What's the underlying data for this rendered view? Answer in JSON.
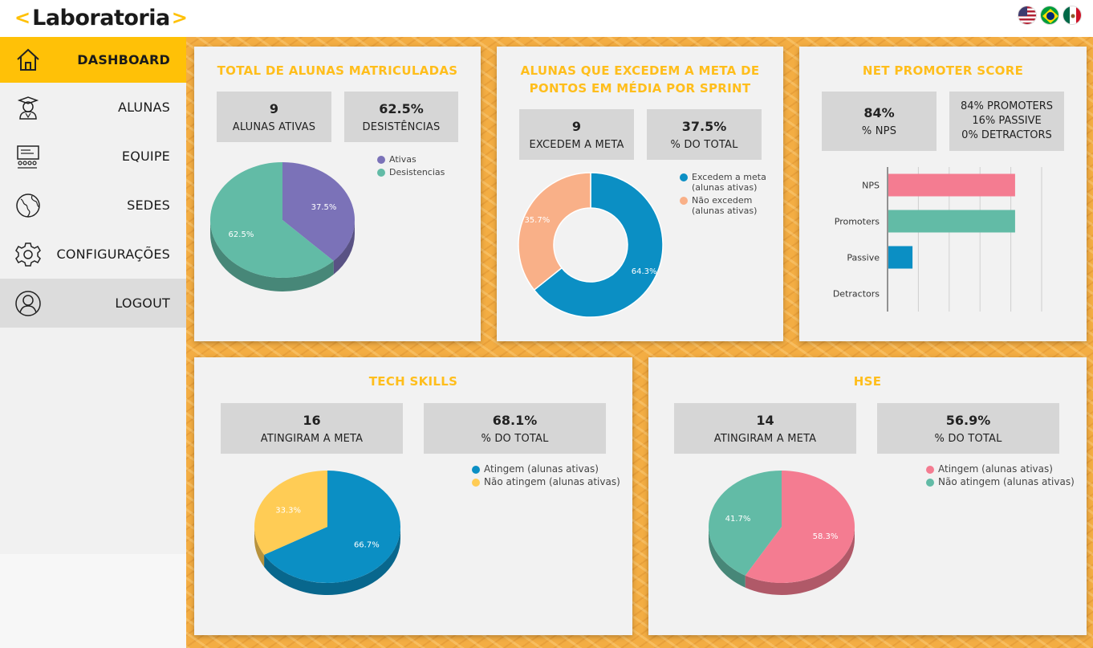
{
  "app": {
    "logo_left": "<",
    "logo_text": "Laboratoria",
    "logo_right": ">",
    "languages": [
      {
        "name": "us-flag-icon",
        "colors": [
          "#b22234",
          "#ffffff",
          "#3c3b6e"
        ]
      },
      {
        "name": "brazil-flag-icon",
        "colors": [
          "#009c3b",
          "#ffdf00",
          "#002776"
        ]
      },
      {
        "name": "mexico-flag-icon",
        "colors": [
          "#006847",
          "#ffffff",
          "#ce1126"
        ]
      }
    ]
  },
  "sidebar": {
    "items": [
      {
        "label": "DASHBOARD",
        "icon": "home-icon",
        "active": true
      },
      {
        "label": "ALUNAS",
        "icon": "student-icon"
      },
      {
        "label": "EQUIPE",
        "icon": "team-icon"
      },
      {
        "label": "SEDES",
        "icon": "globe-icon"
      },
      {
        "label": "CONFIGURAÇÕES",
        "icon": "gear-icon"
      },
      {
        "label": "LOGOUT",
        "icon": "user-circle-icon"
      }
    ]
  },
  "cards": {
    "enrolled": {
      "title": "TOTAL DE ALUNAS MATRICULADAS",
      "stat1_num": "9",
      "stat1_label": "ALUNAS ATIVAS",
      "stat2_num": "62.5%",
      "stat2_label": "DESISTÊNCIAS",
      "legend": [
        "Ativas",
        "Desistencias"
      ]
    },
    "exceed": {
      "title_line1": "ALUNAS QUE EXCEDEM A META DE",
      "title_line2": "PONTOS EM MÉDIA POR SPRINT",
      "stat1_num": "9",
      "stat1_label": "EXCEDEM A META",
      "stat2_num": "37.5%",
      "stat2_label": "% DO TOTAL",
      "legend1_line1": "Excedem a meta",
      "legend1_line2": "(alunas ativas)",
      "legend2_line1": "Não excedem",
      "legend2_line2": "(alunas ativas)"
    },
    "nps": {
      "title": "NET PROMOTER SCORE",
      "stat1_num": "84%",
      "stat1_label": "% NPS",
      "line1": "84% PROMOTERS",
      "line2": "16% PASSIVE",
      "line3": "0% DETRACTORS"
    },
    "tech": {
      "title": "TECH SKILLS",
      "stat1_num": "16",
      "stat1_label": "ATINGIRAM A META",
      "stat2_num": "68.1%",
      "stat2_label": "% DO TOTAL",
      "legend": [
        "Atingem (alunas ativas)",
        "Não atingem (alunas ativas)"
      ]
    },
    "hse": {
      "title": "HSE",
      "stat1_num": "14",
      "stat1_label": "ATINGIRAM A META",
      "stat2_num": "56.9%",
      "stat2_label": "% DO TOTAL",
      "legend": [
        "Atingem (alunas ativas)",
        "Não atingem (alunas ativas)"
      ]
    }
  },
  "chart_data": [
    {
      "type": "pie",
      "categories": [
        "Ativas",
        "Desistencias"
      ],
      "values": [
        37.5,
        62.5
      ],
      "labels": [
        "37.5%",
        "62.5%"
      ],
      "colors": [
        "#7b72b8",
        "#62bba6"
      ],
      "legend": "right"
    },
    {
      "type": "pie",
      "variant": "donut",
      "categories": [
        "Excedem a meta (alunas ativas)",
        "Não excedem (alunas ativas)"
      ],
      "values": [
        64.3,
        35.7
      ],
      "labels": [
        "64.3%",
        "35.7%"
      ],
      "colors": [
        "#0b8fc4",
        "#f9b088"
      ],
      "legend": "right"
    },
    {
      "type": "bar",
      "orientation": "horizontal",
      "categories": [
        "NPS",
        "Promoters",
        "Passive",
        "Detractors"
      ],
      "values": [
        84,
        84,
        16,
        0
      ],
      "colors": [
        "#f47c91",
        "#62bba6",
        "#0b8fc4",
        "#999999"
      ],
      "xlim": [
        0,
        100
      ],
      "grid": true
    },
    {
      "type": "pie",
      "categories": [
        "Atingem (alunas ativas)",
        "Não atingem (alunas ativas)"
      ],
      "values": [
        66.7,
        33.3
      ],
      "labels": [
        "66.7%",
        "33.3%"
      ],
      "colors": [
        "#0b8fc4",
        "#ffcc55"
      ],
      "legend": "right"
    },
    {
      "type": "pie",
      "categories": [
        "Atingem (alunas ativas)",
        "Não atingem (alunas ativas)"
      ],
      "values": [
        58.3,
        41.7
      ],
      "labels": [
        "58.3%",
        "41.7%"
      ],
      "colors": [
        "#f47c91",
        "#62bba6"
      ],
      "legend": "right"
    }
  ]
}
